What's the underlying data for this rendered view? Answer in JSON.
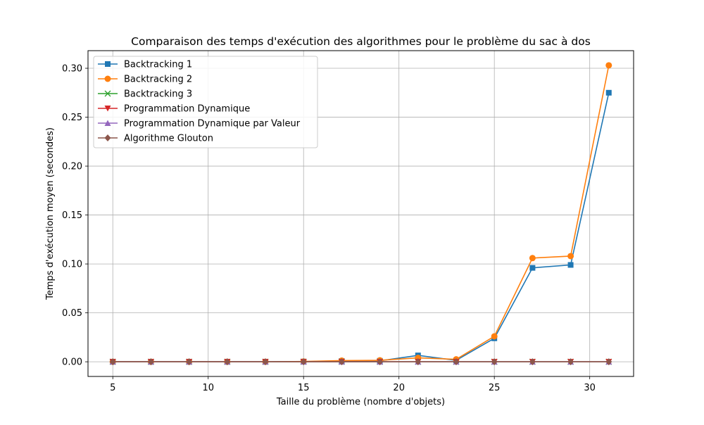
{
  "chart_data": {
    "type": "line",
    "title": "Comparaison des temps d'exécution des algorithmes pour le problème du sac à dos",
    "xlabel": "Taille du problème (nombre d'objets)",
    "ylabel": "Temps d'exécution moyen (secondes)",
    "xlim": [
      3.7,
      32.3
    ],
    "ylim": [
      -0.015,
      0.318
    ],
    "xticks": [
      5,
      10,
      15,
      20,
      25,
      30
    ],
    "yticks": [
      0.0,
      0.05,
      0.1,
      0.15,
      0.2,
      0.25,
      0.3
    ],
    "ytick_labels": [
      "0.00",
      "0.05",
      "0.10",
      "0.15",
      "0.20",
      "0.25",
      "0.30"
    ],
    "grid": true,
    "legend_position": "top-left",
    "x": [
      5,
      7,
      9,
      11,
      13,
      15,
      17,
      19,
      21,
      23,
      25,
      27,
      29,
      31
    ],
    "series": [
      {
        "name": "Backtracking 1",
        "color": "#1f77b4",
        "marker": "square",
        "values": [
          0,
          0,
          0,
          0,
          0,
          0.0002,
          0.0008,
          0.001,
          0.0065,
          0.0015,
          0.024,
          0.096,
          0.099,
          0.275
        ]
      },
      {
        "name": "Backtracking 2",
        "color": "#ff7f0e",
        "marker": "circle",
        "values": [
          0,
          0,
          0,
          0,
          0,
          0.0003,
          0.0012,
          0.0015,
          0.004,
          0.0025,
          0.026,
          0.106,
          0.108,
          0.303
        ]
      },
      {
        "name": "Backtracking 3",
        "color": "#2ca02c",
        "marker": "x",
        "values": [
          0,
          0,
          0,
          0,
          0,
          0,
          0,
          0,
          0,
          0,
          0,
          0,
          0,
          0
        ]
      },
      {
        "name": "Programmation Dynamique",
        "color": "#d62728",
        "marker": "triangle-down",
        "values": [
          0,
          0,
          0,
          0,
          0,
          0,
          0,
          0,
          0,
          0,
          0,
          0,
          0,
          0
        ]
      },
      {
        "name": "Programmation Dynamique par Valeur",
        "color": "#9467bd",
        "marker": "triangle-up",
        "values": [
          0,
          0,
          0,
          0,
          0,
          0,
          0,
          0,
          0,
          0,
          0,
          0,
          0,
          0
        ]
      },
      {
        "name": "Algorithme Glouton",
        "color": "#8c564b",
        "marker": "diamond",
        "values": [
          0,
          0,
          0,
          0,
          0,
          0,
          0,
          0,
          0,
          0,
          0,
          0,
          0,
          0
        ]
      }
    ]
  }
}
